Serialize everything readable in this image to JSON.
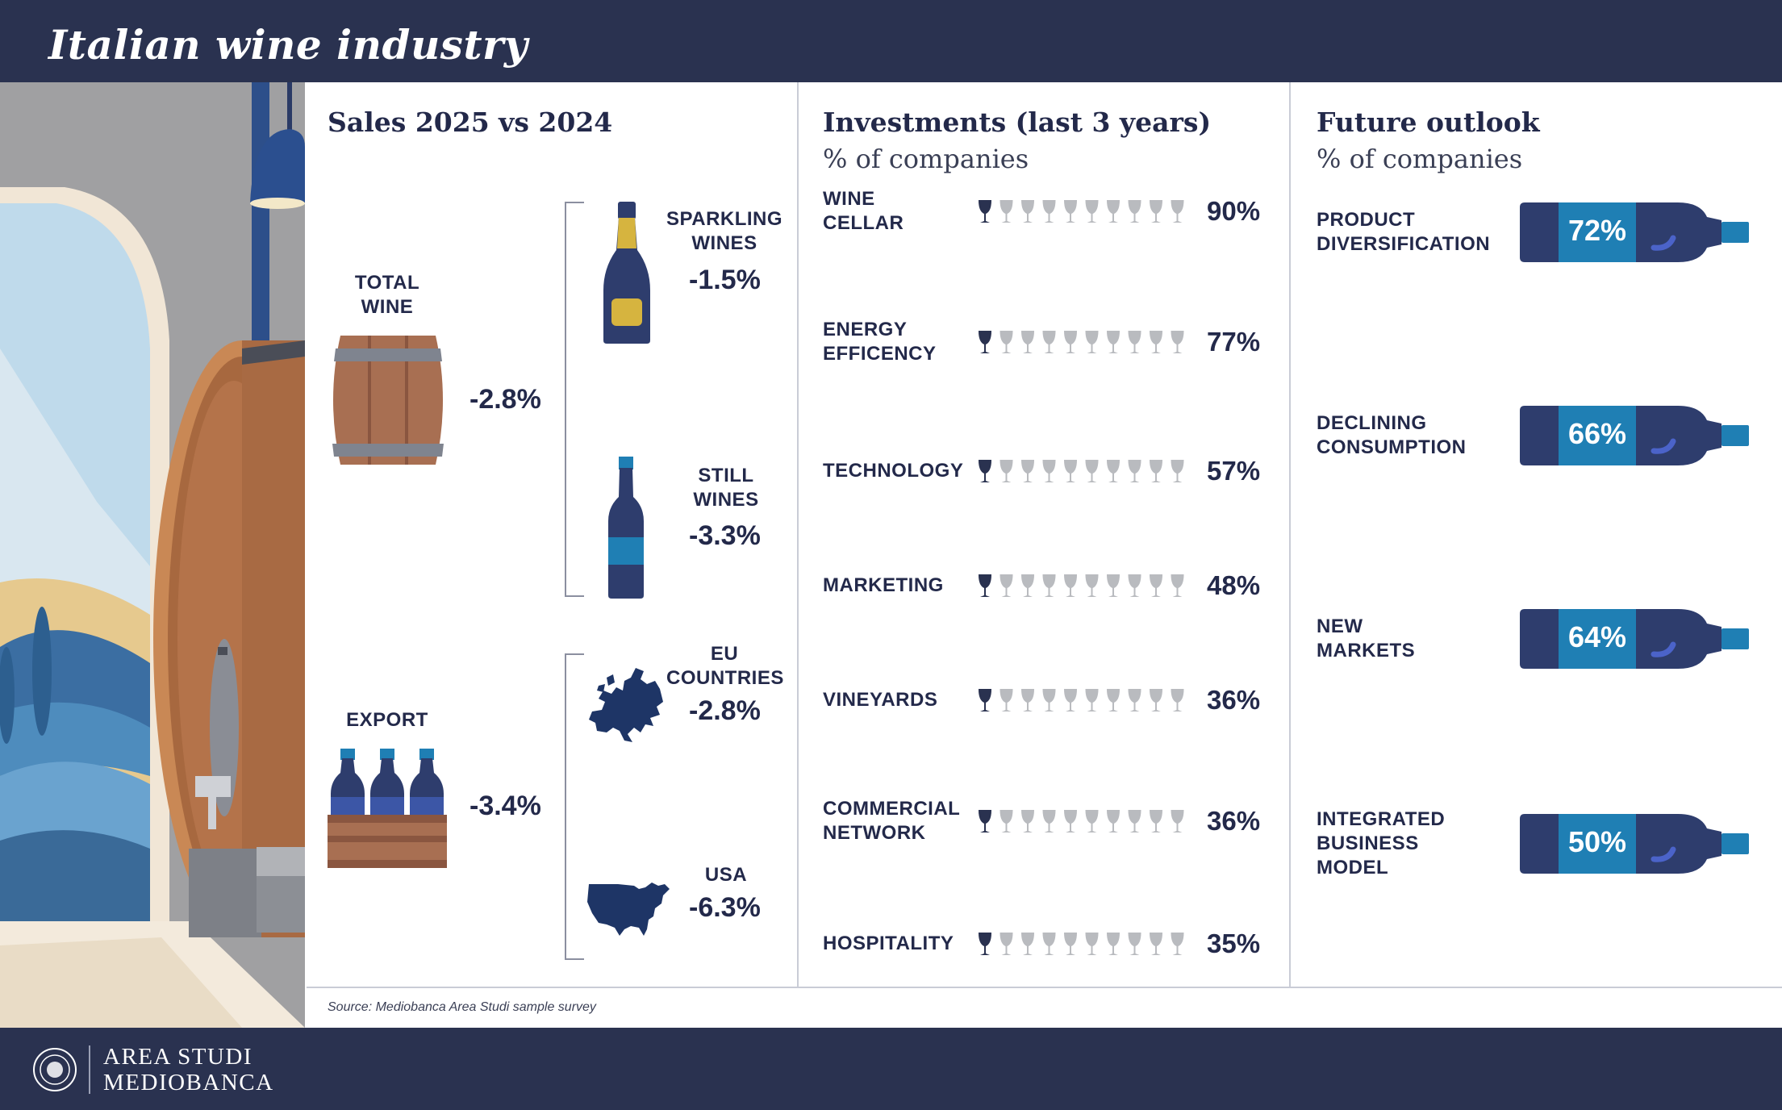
{
  "header": {
    "title": "Italian wine industry"
  },
  "footer": {
    "brand_line1": "AREA STUDI",
    "brand_line2": "MEDIOBANCA"
  },
  "colors": {
    "navy": "#2a3250",
    "bottle": "#2e3d6d",
    "accent_blue": "#1f7fb4",
    "glass_gray": "#b9bbbf",
    "barrel": "#a86f52"
  },
  "sales": {
    "title": "Sales 2025 vs 2024",
    "total_wine": {
      "label_line1": "TOTAL",
      "label_line2": "WINE",
      "value": "-2.8%"
    },
    "sparkling": {
      "label_line1": "SPARKLING",
      "label_line2": "WINES",
      "value": "-1.5%"
    },
    "still": {
      "label_line1": "STILL",
      "label_line2": "WINES",
      "value": "-3.3%"
    },
    "export": {
      "label": "EXPORT",
      "value": "-3.4%"
    },
    "eu": {
      "label_line1": "EU",
      "label_line2": "COUNTRIES",
      "value": "-2.8%"
    },
    "usa": {
      "label": "USA",
      "value": "-6.3%"
    },
    "icons": [
      "barrel-icon",
      "sparkling-bottle-icon",
      "still-bottle-icon",
      "wine-crate-icon",
      "europe-map-icon",
      "usa-map-icon"
    ]
  },
  "investments": {
    "title": "Investments (last 3 years)",
    "subtitle": "% of companies",
    "icon": "wine-glass-icon"
  },
  "outlook": {
    "title": "Future outlook",
    "subtitle": "% of companies",
    "icon": "wine-bottle-icon"
  },
  "source": "Source: Mediobanca Area Studi sample survey",
  "chart_data": [
    {
      "type": "bar",
      "title": "Investments (last 3 years)",
      "subtitle": "% of companies",
      "unit": "%",
      "categories": [
        "WINE CELLAR",
        "ENERGY EFFICENCY",
        "TECHNOLOGY",
        "MARKETING",
        "VINEYARDS",
        "COMMERCIAL NETWORK",
        "HOSPITALITY"
      ],
      "label_lines": [
        [
          "WINE",
          "CELLAR"
        ],
        [
          "ENERGY",
          "EFFICENCY"
        ],
        [
          "TECHNOLOGY"
        ],
        [
          "MARKETING"
        ],
        [
          "VINEYARDS"
        ],
        [
          "COMMERCIAL",
          "NETWORK"
        ],
        [
          "HOSPITALITY"
        ]
      ],
      "values": [
        90,
        77,
        57,
        48,
        36,
        36,
        35
      ],
      "value_labels": [
        "90%",
        "77%",
        "57%",
        "48%",
        "36%",
        "36%",
        "35%"
      ],
      "ylim": [
        0,
        100
      ]
    },
    {
      "type": "bar",
      "title": "Future outlook",
      "subtitle": "% of companies",
      "unit": "%",
      "categories": [
        "PRODUCT DIVERSIFICATION",
        "DECLINING CONSUMPTION",
        "NEW MARKETS",
        "INTEGRATED BUSINESS MODEL"
      ],
      "label_lines": [
        [
          "PRODUCT",
          "DIVERSIFICATION"
        ],
        [
          "DECLINING",
          "CONSUMPTION"
        ],
        [
          "NEW",
          "MARKETS"
        ],
        [
          "INTEGRATED",
          "BUSINESS",
          "MODEL"
        ]
      ],
      "values": [
        72,
        66,
        64,
        50
      ],
      "value_labels": [
        "72%",
        "66%",
        "64%",
        "50%"
      ]
    }
  ]
}
